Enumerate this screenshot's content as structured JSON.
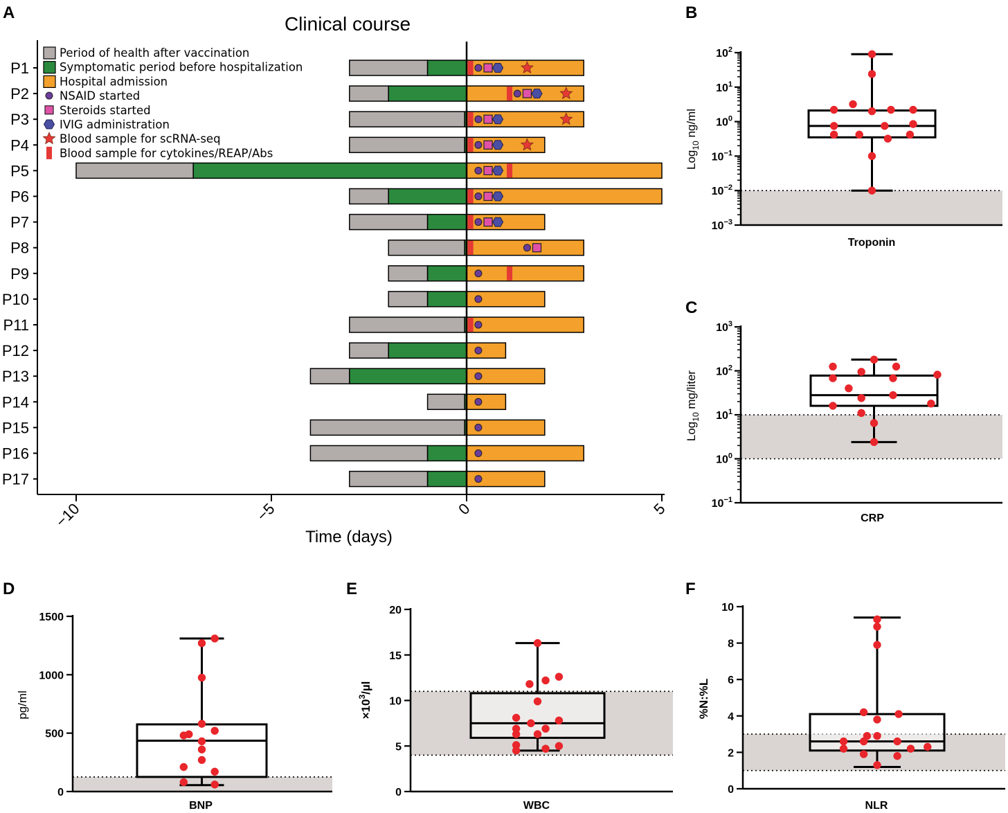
{
  "chart_data": [
    {
      "panel": "A",
      "type": "bar",
      "title": "Clinical course",
      "xlabel": "Time (days)",
      "xlim": [
        -10,
        5
      ],
      "xticks": [
        -10,
        -5,
        0,
        5
      ],
      "colors": {
        "health": "#b2acab",
        "symptomatic": "#2b8a3e",
        "hospital": "#f3a02c",
        "nsaid": "#6a3d9a",
        "steroids": "#e052a8",
        "ivig": "#4b4fa3",
        "scrna": "#e53935",
        "blood": "#e53935"
      },
      "legend": [
        {
          "key": "health",
          "label": "Period of health after vaccination",
          "symbol": "square",
          "icon": "gray-square-icon"
        },
        {
          "key": "symptomatic",
          "label": "Symptomatic period before hospitalization",
          "symbol": "square",
          "icon": "green-square-icon"
        },
        {
          "key": "hospital",
          "label": "Hospital admission",
          "symbol": "square",
          "icon": "orange-square-icon"
        },
        {
          "key": "nsaid",
          "label": "NSAID started",
          "symbol": "circle",
          "icon": "purple-circle-icon"
        },
        {
          "key": "steroids",
          "label": "Steroids started",
          "symbol": "square",
          "icon": "pink-square-icon"
        },
        {
          "key": "ivig",
          "label": "IVIG administration",
          "symbol": "hexagon",
          "icon": "blue-hexagon-icon"
        },
        {
          "key": "scrna",
          "label": "Blood sample for scRNA-seq",
          "symbol": "star",
          "icon": "red-star-icon"
        },
        {
          "key": "blood",
          "label": "Blood sample for cytokines/REAP/Abs",
          "symbol": "bar",
          "icon": "red-bar-icon"
        }
      ],
      "patients": [
        {
          "id": "P1",
          "health_start": -3,
          "symptom_start": -1,
          "hospital_end": 3,
          "nsaid": 0.3,
          "steroids": 0.55,
          "ivig": 0.8,
          "scrna": 1.55,
          "blood": 0.1
        },
        {
          "id": "P2",
          "health_start": -3,
          "symptom_start": -2,
          "hospital_end": 3,
          "nsaid": 1.3,
          "steroids": 1.55,
          "ivig": 1.8,
          "scrna": 2.55,
          "blood": 1.1
        },
        {
          "id": "P3",
          "health_start": -3,
          "symptom_start": -0.05,
          "hospital_end": 3,
          "nsaid": 0.3,
          "steroids": 0.55,
          "ivig": 0.8,
          "scrna": 2.55,
          "blood": 0.1
        },
        {
          "id": "P4",
          "health_start": -3,
          "symptom_start": -0.05,
          "hospital_end": 2,
          "nsaid": 0.3,
          "steroids": 0.55,
          "ivig": 0.8,
          "scrna": 1.55,
          "blood": 0.1
        },
        {
          "id": "P5",
          "health_start": -10,
          "symptom_start": -7,
          "hospital_end": 5,
          "nsaid": 0.3,
          "steroids": 0.55,
          "ivig": 0.8,
          "scrna": null,
          "blood": 1.1
        },
        {
          "id": "P6",
          "health_start": -3,
          "symptom_start": -2,
          "hospital_end": 5,
          "nsaid": 0.3,
          "steroids": 0.55,
          "ivig": 0.8,
          "scrna": null,
          "blood": 0.1
        },
        {
          "id": "P7",
          "health_start": -3,
          "symptom_start": -1,
          "hospital_end": 2,
          "nsaid": 0.3,
          "steroids": 0.55,
          "ivig": 0.8,
          "scrna": null,
          "blood": 0.1
        },
        {
          "id": "P8",
          "health_start": -2,
          "symptom_start": -0.05,
          "hospital_end": 3,
          "nsaid": 1.55,
          "steroids": 1.8,
          "ivig": null,
          "scrna": null,
          "blood": 0.1
        },
        {
          "id": "P9",
          "health_start": -2,
          "symptom_start": -1,
          "hospital_end": 3,
          "nsaid": 0.3,
          "steroids": null,
          "ivig": null,
          "scrna": null,
          "blood": 1.1
        },
        {
          "id": "P10",
          "health_start": -2,
          "symptom_start": -1,
          "hospital_end": 2,
          "nsaid": 0.3,
          "steroids": null,
          "ivig": null,
          "scrna": null,
          "blood": null
        },
        {
          "id": "P11",
          "health_start": -3,
          "symptom_start": -0.05,
          "hospital_end": 3,
          "nsaid": 0.3,
          "steroids": null,
          "ivig": null,
          "scrna": null,
          "blood": 0.1
        },
        {
          "id": "P12",
          "health_start": -3,
          "symptom_start": -2,
          "hospital_end": 1,
          "nsaid": 0.3,
          "steroids": null,
          "ivig": null,
          "scrna": null,
          "blood": null
        },
        {
          "id": "P13",
          "health_start": -4,
          "symptom_start": -3,
          "hospital_end": 2,
          "nsaid": 0.3,
          "steroids": null,
          "ivig": null,
          "scrna": null,
          "blood": null
        },
        {
          "id": "P14",
          "health_start": -1,
          "symptom_start": -0.05,
          "hospital_end": 1,
          "nsaid": 0.3,
          "steroids": null,
          "ivig": null,
          "scrna": null,
          "blood": null
        },
        {
          "id": "P15",
          "health_start": -4,
          "symptom_start": -0.05,
          "hospital_end": 2,
          "nsaid": 0.3,
          "steroids": null,
          "ivig": null,
          "scrna": null,
          "blood": null
        },
        {
          "id": "P16",
          "health_start": -4,
          "symptom_start": -1,
          "hospital_end": 3,
          "nsaid": 0.3,
          "steroids": null,
          "ivig": null,
          "scrna": null,
          "blood": null
        },
        {
          "id": "P17",
          "health_start": -3,
          "symptom_start": -1,
          "hospital_end": 2,
          "nsaid": 0.3,
          "steroids": null,
          "ivig": null,
          "scrna": null,
          "blood": null
        }
      ]
    },
    {
      "panel": "B",
      "type": "box",
      "xlabel": "Troponin",
      "ylabel": "Log10 ng/ml",
      "scale": "log",
      "ylim": [
        0.001,
        100
      ],
      "ticks": [
        {
          "v": 0.001,
          "b": "10",
          "e": "−3"
        },
        {
          "v": 0.01,
          "b": "10",
          "e": "−2"
        },
        {
          "v": 0.1,
          "b": "10",
          "e": "−1"
        },
        {
          "v": 1,
          "b": "10",
          "e": "0"
        },
        {
          "v": 10,
          "b": "10",
          "e": "1"
        },
        {
          "v": 100,
          "b": "10",
          "e": "2"
        }
      ],
      "normal_range": [
        0.001,
        0.01
      ],
      "box": {
        "min": 0.01,
        "q1": 0.35,
        "median": 0.75,
        "q3": 2.1,
        "max": 90
      },
      "points": [
        {
          "v": 90,
          "dx": 0
        },
        {
          "v": 24,
          "dx": 0
        },
        {
          "v": 3.2,
          "dx": -0.3
        },
        {
          "v": 2.2,
          "dx": -0.6
        },
        {
          "v": 2.2,
          "dx": 0.3
        },
        {
          "v": 2.2,
          "dx": 0.65
        },
        {
          "v": 2.0,
          "dx": 0
        },
        {
          "v": 0.75,
          "dx": -0.6
        },
        {
          "v": 0.75,
          "dx": 0.2
        },
        {
          "v": 0.85,
          "dx": 0.65
        },
        {
          "v": 0.42,
          "dx": -0.6
        },
        {
          "v": 0.42,
          "dx": -0.2
        },
        {
          "v": 0.42,
          "dx": 0.6
        },
        {
          "v": 0.32,
          "dx": 0.25
        },
        {
          "v": 0.1,
          "dx": 0
        },
        {
          "v": 0.01,
          "dx": 0
        }
      ]
    },
    {
      "panel": "C",
      "type": "box",
      "xlabel": "CRP",
      "ylabel": "Log10 mg/liter",
      "scale": "log",
      "ylim": [
        0.1,
        1000
      ],
      "ticks": [
        {
          "v": 0.1,
          "b": "10",
          "e": "−1"
        },
        {
          "v": 1,
          "b": "10",
          "e": "0"
        },
        {
          "v": 10,
          "b": "10",
          "e": "1"
        },
        {
          "v": 100,
          "b": "10",
          "e": "2"
        },
        {
          "v": 1000,
          "b": "10",
          "e": "3"
        }
      ],
      "normal_range": [
        1,
        10
      ],
      "box": {
        "min": 2.4,
        "q1": 16,
        "median": 28,
        "q3": 78,
        "max": 180
      },
      "points": [
        {
          "v": 180,
          "dx": 0
        },
        {
          "v": 125,
          "dx": -0.65
        },
        {
          "v": 125,
          "dx": 0.35
        },
        {
          "v": 95,
          "dx": -0.2
        },
        {
          "v": 82,
          "dx": 1.0
        },
        {
          "v": 68,
          "dx": -0.65
        },
        {
          "v": 68,
          "dx": 0.3
        },
        {
          "v": 40,
          "dx": -0.4
        },
        {
          "v": 28,
          "dx": 0.3
        },
        {
          "v": 24,
          "dx": -0.2
        },
        {
          "v": 16,
          "dx": -0.65
        },
        {
          "v": 18,
          "dx": 0.9
        },
        {
          "v": 11,
          "dx": -0.2
        },
        {
          "v": 6.5,
          "dx": 0
        },
        {
          "v": 2.4,
          "dx": 0
        }
      ]
    },
    {
      "panel": "D",
      "type": "box",
      "xlabel": "BNP",
      "ylabel": "pg/ml",
      "scale": "linear",
      "ylim": [
        0,
        1500
      ],
      "ticks": [
        {
          "v": 0,
          "t": "0"
        },
        {
          "v": 500,
          "t": "500"
        },
        {
          "v": 1000,
          "t": "1000"
        },
        {
          "v": 1500,
          "t": "1500"
        }
      ],
      "normal_range": [
        0,
        125
      ],
      "box": {
        "min": 55,
        "q1": 125,
        "median": 435,
        "q3": 575,
        "max": 1310
      },
      "points": [
        {
          "v": 1310,
          "dx": 0.2
        },
        {
          "v": 1270,
          "dx": 0
        },
        {
          "v": 975,
          "dx": 0
        },
        {
          "v": 580,
          "dx": 0
        },
        {
          "v": 520,
          "dx": 0.2
        },
        {
          "v": 490,
          "dx": -0.2
        },
        {
          "v": 480,
          "dx": -0.28
        },
        {
          "v": 430,
          "dx": 0
        },
        {
          "v": 360,
          "dx": 0
        },
        {
          "v": 270,
          "dx": 0
        },
        {
          "v": 210,
          "dx": -0.28
        },
        {
          "v": 170,
          "dx": 0.2
        },
        {
          "v": 80,
          "dx": -0.28
        },
        {
          "v": 60,
          "dx": 0.2
        }
      ]
    },
    {
      "panel": "E",
      "type": "box",
      "xlabel": "WBC",
      "ylabel": "×10³/µl",
      "scale": "linear",
      "ylim": [
        0,
        20
      ],
      "ticks": [
        {
          "v": 0,
          "t": "0"
        },
        {
          "v": 5,
          "t": "5"
        },
        {
          "v": 10,
          "t": "10"
        },
        {
          "v": 15,
          "t": "15"
        },
        {
          "v": 20,
          "t": "20"
        }
      ],
      "normal_range": [
        4,
        11
      ],
      "box": {
        "min": 4.5,
        "q1": 5.9,
        "median": 7.5,
        "q3": 10.8,
        "max": 16.3
      },
      "points": [
        {
          "v": 16.3,
          "dx": 0
        },
        {
          "v": 12.6,
          "dx": 0.32
        },
        {
          "v": 12.2,
          "dx": 0.12
        },
        {
          "v": 11.8,
          "dx": -0.12
        },
        {
          "v": 9.9,
          "dx": 0
        },
        {
          "v": 8.1,
          "dx": -0.32
        },
        {
          "v": 7.8,
          "dx": 0.32
        },
        {
          "v": 7.5,
          "dx": -0.1
        },
        {
          "v": 6.9,
          "dx": -0.32
        },
        {
          "v": 6.9,
          "dx": 0.12
        },
        {
          "v": 6.3,
          "dx": -0.32
        },
        {
          "v": 6.3,
          "dx": 0
        },
        {
          "v": 5.1,
          "dx": -0.32
        },
        {
          "v": 5.0,
          "dx": 0.32
        },
        {
          "v": 4.7,
          "dx": 0.12
        },
        {
          "v": 4.5,
          "dx": -0.32
        }
      ]
    },
    {
      "panel": "F",
      "type": "box",
      "xlabel": "NLR",
      "ylabel": "%N:%L",
      "scale": "linear",
      "ylim": [
        0,
        10
      ],
      "ticks": [
        {
          "v": 0,
          "t": "0"
        },
        {
          "v": 2,
          "t": "2"
        },
        {
          "v": 4,
          "t": "4"
        },
        {
          "v": 6,
          "t": "6"
        },
        {
          "v": 8,
          "t": "8"
        },
        {
          "v": 10,
          "t": "10"
        }
      ],
      "normal_range": [
        1,
        3
      ],
      "box": {
        "min": 1.2,
        "q1": 2.1,
        "median": 2.6,
        "q3": 4.1,
        "max": 9.4
      },
      "points": [
        {
          "v": 9.3,
          "dx": 0
        },
        {
          "v": 8.9,
          "dx": 0
        },
        {
          "v": 7.9,
          "dx": 0
        },
        {
          "v": 4.2,
          "dx": -0.2
        },
        {
          "v": 4.1,
          "dx": 0.32
        },
        {
          "v": 3.8,
          "dx": 0
        },
        {
          "v": 2.9,
          "dx": 0
        },
        {
          "v": 2.9,
          "dx": -0.15
        },
        {
          "v": 2.6,
          "dx": -0.5
        },
        {
          "v": 2.6,
          "dx": -0.2
        },
        {
          "v": 2.6,
          "dx": 0.3
        },
        {
          "v": 2.2,
          "dx": -0.5
        },
        {
          "v": 2.2,
          "dx": 0.5
        },
        {
          "v": 2.3,
          "dx": 0.75
        },
        {
          "v": 1.9,
          "dx": -0.2
        },
        {
          "v": 1.8,
          "dx": 0.3
        },
        {
          "v": 1.3,
          "dx": 0
        }
      ]
    }
  ]
}
